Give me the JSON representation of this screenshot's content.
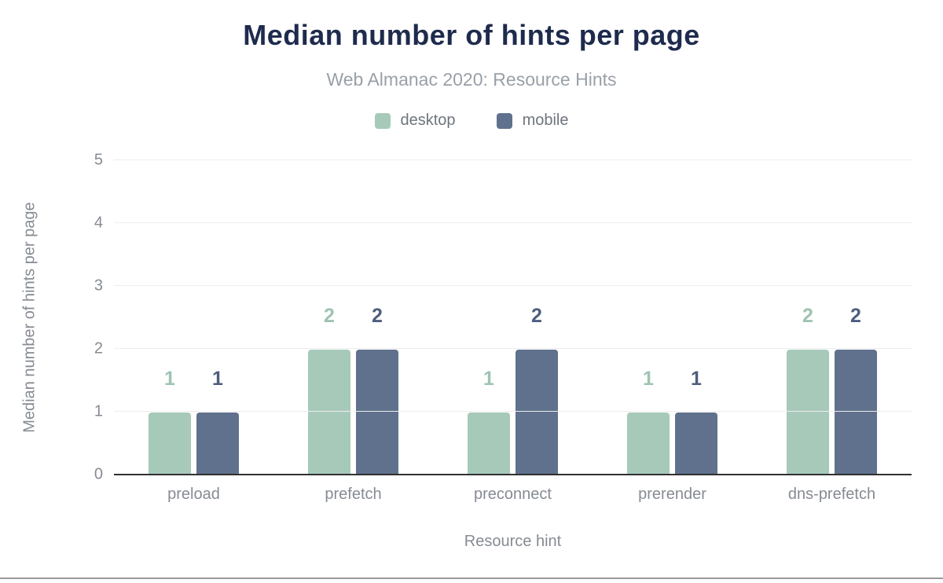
{
  "chart_data": {
    "type": "bar",
    "title": "Median number of hints per page",
    "subtitle": "Web Almanac 2020: Resource Hints",
    "categories": [
      "preload",
      "prefetch",
      "preconnect",
      "prerender",
      "dns-prefetch"
    ],
    "series": [
      {
        "name": "desktop",
        "color": "#a7c9ba",
        "label_color": "#9fc3b1",
        "values": [
          1,
          2,
          1,
          1,
          2
        ]
      },
      {
        "name": "mobile",
        "color": "#5f718c",
        "label_color": "#4d5e7e",
        "values": [
          1,
          2,
          2,
          1,
          2
        ]
      }
    ],
    "xlabel": "Resource hint",
    "ylabel": "Median number of hints per page",
    "ylim": [
      0,
      5
    ],
    "yticks": [
      0,
      1,
      2,
      3,
      4,
      5
    ],
    "grid": true,
    "legend_position": "top"
  },
  "style": {
    "title_color": "#1e2b4d",
    "subtitle_color": "#9aa0a8",
    "axis_text_color": "#868b93",
    "gridline_color": "#ededed",
    "axis_line_color": "#313131",
    "bottom_border_color": "#9a9a9a",
    "background": "#ffffff"
  }
}
